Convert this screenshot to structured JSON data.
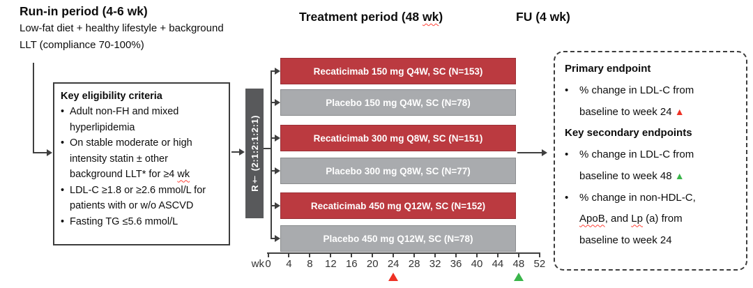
{
  "colors": {
    "drug_red": "#bb3a40",
    "placebo_gray": "#a9abae",
    "rand_gray": "#58595b",
    "marker_red": "#ee3124",
    "marker_green": "#3ab54a"
  },
  "header": {
    "run_in_title": "Run-in period (4-6 wk)",
    "run_in_subtitle": "Low-fat diet + healthy lifestyle + background LLT (compliance 70-100%)",
    "treatment_title_pre": "Treatment period (48 ",
    "treatment_title_wavy": "wk",
    "treatment_title_post": ")",
    "fu_title": "FU (4 wk)"
  },
  "eligibility": {
    "title": "Key eligibility criteria",
    "bullet": "•",
    "item1": "Adult non-FH and mixed hyperlipidemia",
    "item2_pre": "On stable moderate or high intensity statin ± other background LLT* for ≥4 ",
    "item2_wavy": "wk",
    "item3": "LDL-C ≥1.8 or ≥2.6 mmol/L for patients with or w/o ASCVD",
    "item4": "Fasting TG ≤5.6 mmol/L"
  },
  "randomization": {
    "label": "R† (2:1:2:1:2:1)"
  },
  "arms": [
    {
      "label": "Recaticimab 150 mg Q4W, SC (N=153)",
      "type": "drug"
    },
    {
      "label": "Placebo 150 mg Q4W, SC (N=78)",
      "type": "placebo"
    },
    {
      "label": "Recaticimab 300 mg Q8W, SC (N=151)",
      "type": "drug"
    },
    {
      "label": "Placebo 300 mg Q8W, SC (N=77)",
      "type": "placebo"
    },
    {
      "label": "Recaticimab 450 mg Q12W, SC (N=152)",
      "type": "drug"
    },
    {
      "label": "Placebo 450 mg Q12W, SC (N=78)",
      "type": "placebo"
    }
  ],
  "axis": {
    "unit": "wk",
    "tick_labels": [
      "0",
      "4",
      "8",
      "12",
      "16",
      "20",
      "24",
      "28",
      "32",
      "36",
      "40",
      "44",
      "48",
      "52"
    ],
    "markers": [
      {
        "week": 24,
        "color": "#ee3124",
        "symbol": "▲"
      },
      {
        "week": 48,
        "color": "#3ab54a",
        "symbol": "▲"
      }
    ]
  },
  "endpoints": {
    "primary_title": "Primary endpoint",
    "bullet": "•",
    "primary_item": "% change in LDL-C from baseline to week 24 ",
    "primary_marker": "▲",
    "secondary_title": "Key secondary endpoints",
    "secondary_item1": "% change in LDL-C from baseline to week 48 ",
    "secondary_item1_marker": "▲",
    "secondary_item2_p1": "% change in non-HDL-C, ",
    "secondary_item2_wavy1": "ApoB",
    "secondary_item2_p2": ", and ",
    "secondary_item2_wavy2": "Lp",
    "secondary_item2_p3": " (a) from baseline to week 24"
  }
}
